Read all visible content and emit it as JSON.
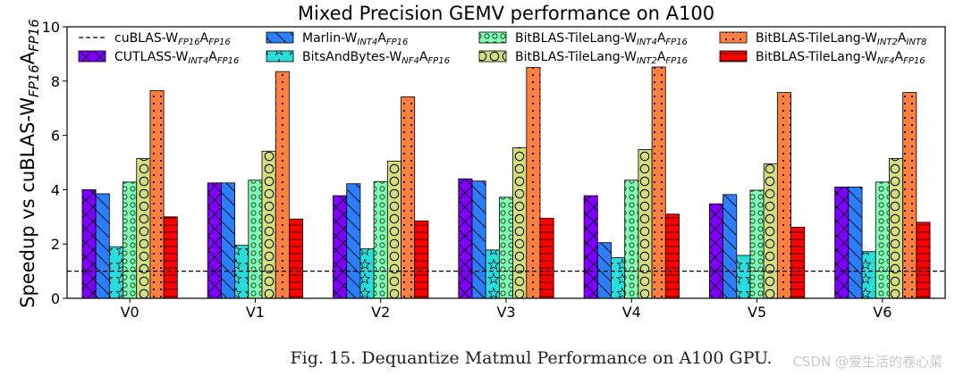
{
  "chart_data": {
    "type": "bar",
    "title": "Mixed Precision GEMV performance on A100",
    "ylabel": {
      "text": "Speedup vs cuBLAS-W",
      "sub1": "FP16",
      "mid": "A",
      "sub2": "FP16"
    },
    "xlabel": "",
    "ylim": [
      0,
      10
    ],
    "yticks": [
      "0",
      "2",
      "4",
      "6",
      "8",
      "10"
    ],
    "categories": [
      "V0",
      "V1",
      "V2",
      "V3",
      "V4",
      "V5",
      "V6"
    ],
    "baseline": {
      "value": 1,
      "label": {
        "main": "cuBLAS-W",
        "s1": "FP16",
        "m": "A",
        "s2": "FP16"
      }
    },
    "legend_position": "top",
    "series": [
      {
        "name": "CUTLASS-WINT4AFP16",
        "label": {
          "main": "CUTLASS-W",
          "s1": "INT4",
          "m": "A",
          "s2": "FP16"
        },
        "color": "#7f00ff",
        "pattern": "x",
        "values": [
          4.0,
          4.25,
          3.78,
          4.4,
          3.78,
          3.48,
          4.1
        ]
      },
      {
        "name": "Marlin-WINT4AFP16",
        "label": {
          "main": "Marlin-W",
          "s1": "INT4",
          "m": "A",
          "s2": "FP16"
        },
        "color": "#2c7ef8",
        "pattern": "diag",
        "values": [
          3.85,
          4.25,
          4.22,
          4.32,
          2.05,
          3.82,
          4.1
        ]
      },
      {
        "name": "BitsAndBytes-WNF4AFP16",
        "label": {
          "main": "BitsAndBytes-W",
          "s1": "NF4",
          "m": "A",
          "s2": "FP16"
        },
        "color": "#2adddd",
        "pattern": "star",
        "values": [
          1.9,
          1.95,
          1.82,
          1.78,
          1.5,
          1.58,
          1.72
        ]
      },
      {
        "name": "BitBLAS-TileLang-WINT4AFP16",
        "label": {
          "main": "BitBLAS-TileLang-W",
          "s1": "INT4",
          "m": "A",
          "s2": "FP16"
        },
        "color": "#80ffb4",
        "pattern": "smallcircle",
        "values": [
          4.28,
          4.35,
          4.3,
          3.72,
          4.35,
          3.98,
          4.28
        ]
      },
      {
        "name": "BitBLAS-TileLang-WINT2AFP16",
        "label": {
          "main": "BitBLAS-TileLang-W",
          "s1": "INT2",
          "m": "A",
          "s2": "FP16"
        },
        "color": "#d4dd80",
        "pattern": "bigcircle",
        "values": [
          5.15,
          5.42,
          5.05,
          5.55,
          5.48,
          4.95,
          5.15
        ]
      },
      {
        "name": "BitBLAS-TileLang-WINT2AINT8",
        "label": {
          "main": "BitBLAS-TileLang-W",
          "s1": "INT2",
          "m": "A",
          "s2": "INT8"
        },
        "color": "#ff7f40",
        "pattern": "dot",
        "values": [
          7.65,
          8.35,
          7.42,
          8.5,
          8.52,
          7.58,
          7.58
        ]
      },
      {
        "name": "BitBLAS-TileLang-WNF4AFP16",
        "label": {
          "main": "BitBLAS-TileLang-W",
          "s1": "NF4",
          "m": "A",
          "s2": "FP16"
        },
        "color": "#ff0000",
        "pattern": "hline",
        "values": [
          3.0,
          2.92,
          2.85,
          2.95,
          3.1,
          2.62,
          2.8
        ]
      }
    ]
  },
  "caption": "Fig. 15.  Dequantize Matmul Performance on A100 GPU.",
  "watermark": "CSDN @爱生活的卷心菜"
}
